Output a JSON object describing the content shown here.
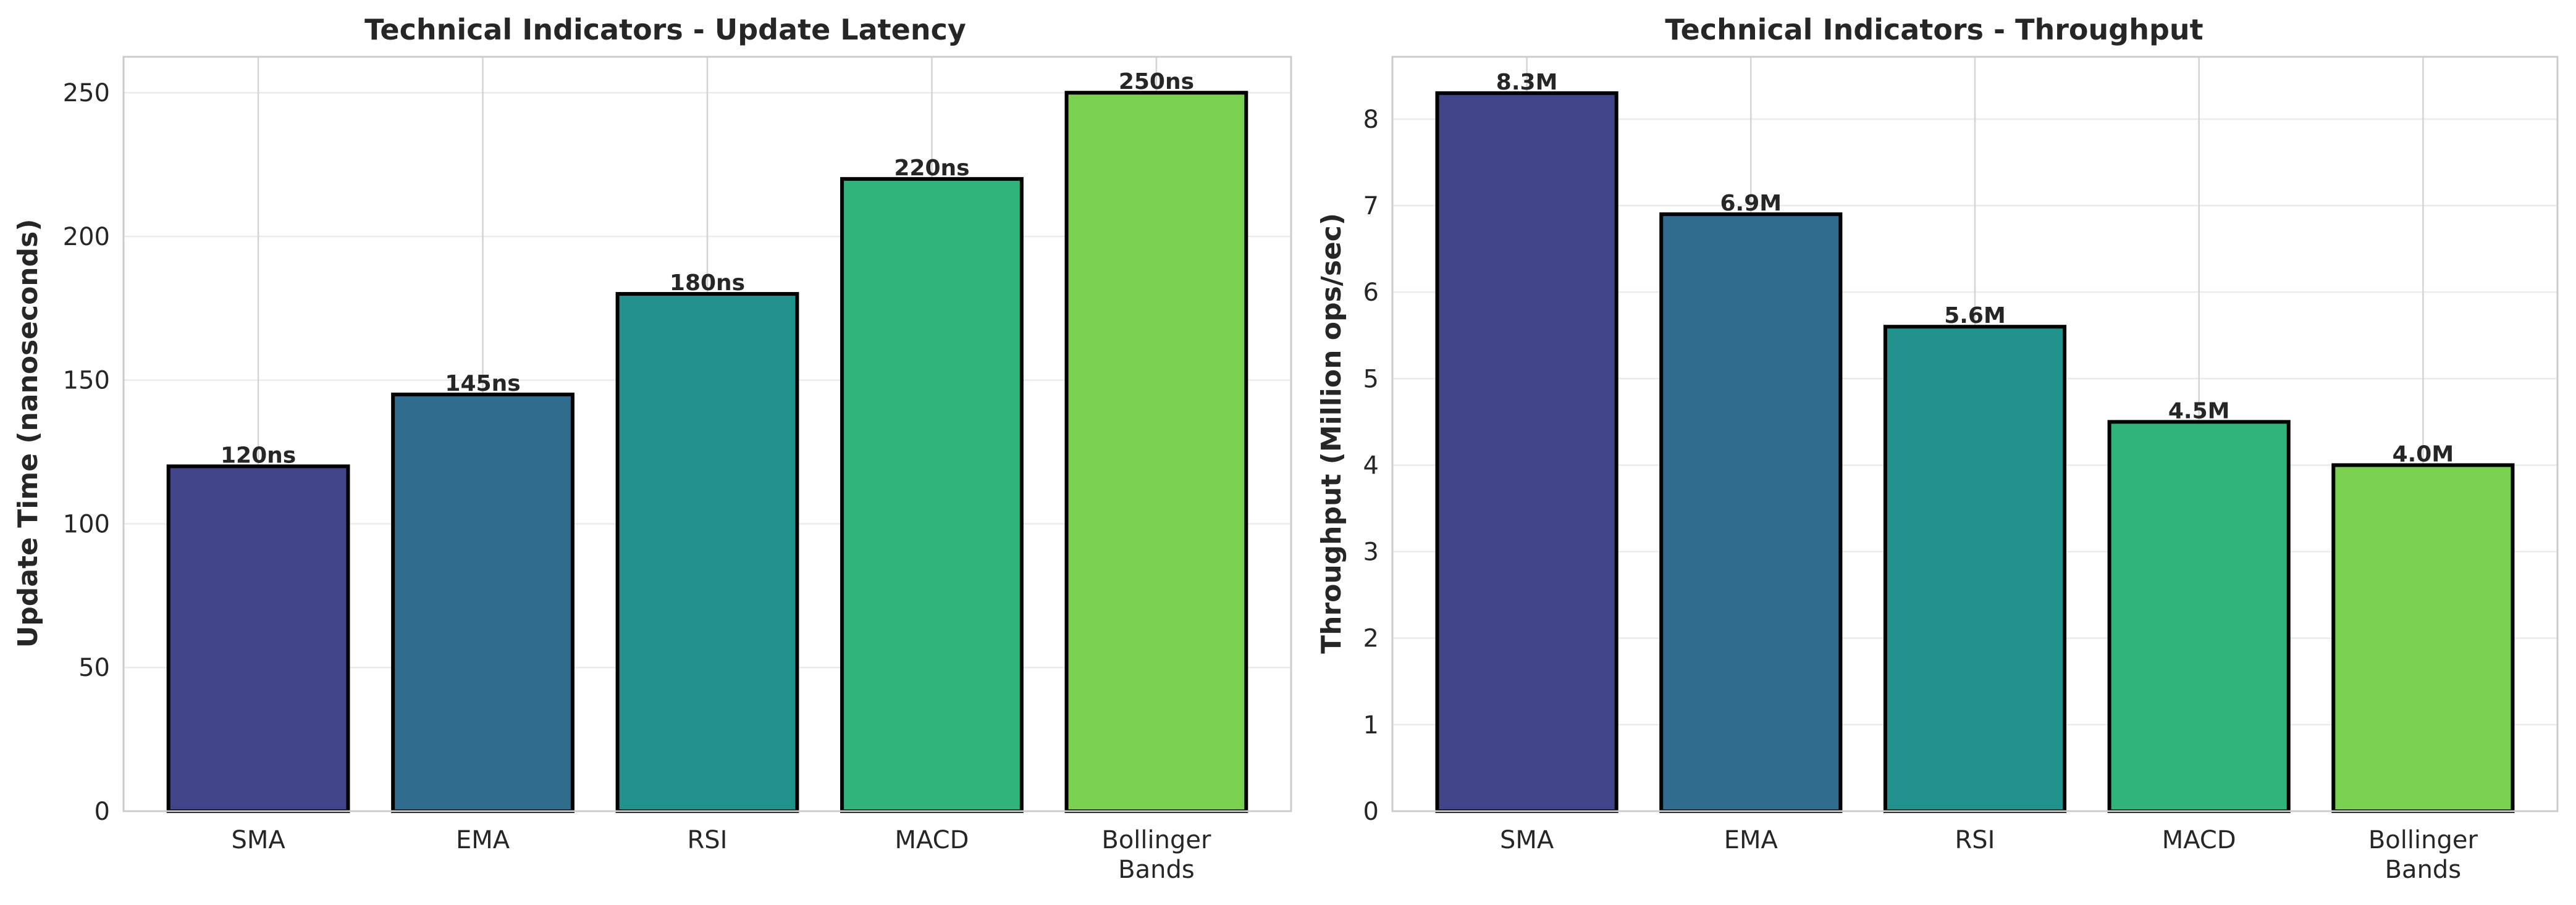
{
  "chart_data": [
    {
      "type": "bar",
      "title": "Technical Indicators - Update Latency",
      "xlabel": "",
      "ylabel": "Update Time (nanoseconds)",
      "categories": [
        "SMA",
        "EMA",
        "RSI",
        "MACD",
        "Bollinger Bands"
      ],
      "category_lines": [
        [
          "SMA"
        ],
        [
          "EMA"
        ],
        [
          "RSI"
        ],
        [
          "MACD"
        ],
        [
          "Bollinger",
          "Bands"
        ]
      ],
      "values": [
        120,
        145,
        180,
        220,
        250
      ],
      "data_labels": [
        "120ns",
        "145ns",
        "180ns",
        "220ns",
        "250ns"
      ],
      "colors": [
        "#414487",
        "#2f6c8e",
        "#21918c",
        "#2fb47c",
        "#7ad151"
      ],
      "ylim": [
        0,
        262.5
      ],
      "yticks": [
        0,
        50,
        100,
        150,
        200,
        250
      ],
      "grid": true,
      "legend": "none"
    },
    {
      "type": "bar",
      "title": "Technical Indicators - Throughput",
      "xlabel": "",
      "ylabel": "Throughput (Million ops/sec)",
      "categories": [
        "SMA",
        "EMA",
        "RSI",
        "MACD",
        "Bollinger Bands"
      ],
      "category_lines": [
        [
          "SMA"
        ],
        [
          "EMA"
        ],
        [
          "RSI"
        ],
        [
          "MACD"
        ],
        [
          "Bollinger",
          "Bands"
        ]
      ],
      "values": [
        8.3,
        6.9,
        5.6,
        4.5,
        4.0
      ],
      "data_labels": [
        "8.3M",
        "6.9M",
        "5.6M",
        "4.5M",
        "4.0M"
      ],
      "colors": [
        "#414487",
        "#2f6c8e",
        "#21918c",
        "#2fb47c",
        "#7ad151"
      ],
      "ylim": [
        0,
        8.72
      ],
      "yticks": [
        0,
        1,
        2,
        3,
        4,
        5,
        6,
        7,
        8
      ],
      "grid": true,
      "legend": "none"
    }
  ]
}
